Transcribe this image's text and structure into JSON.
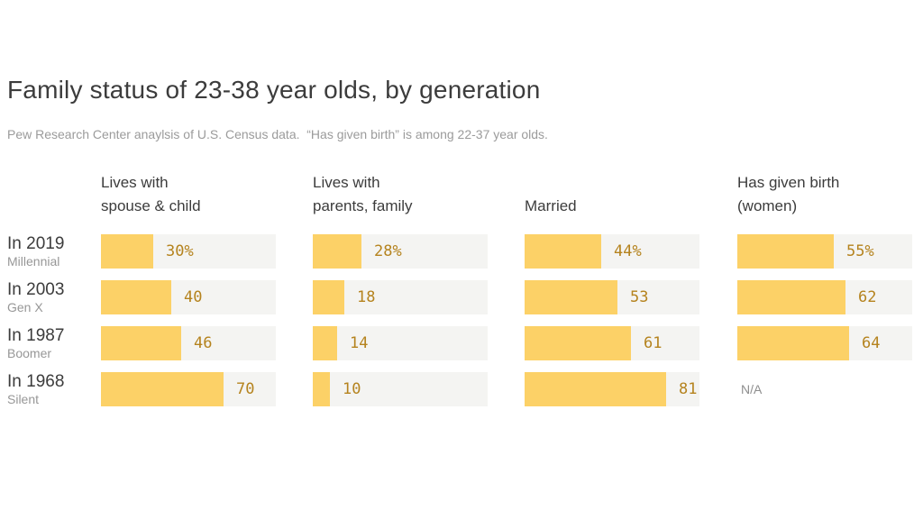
{
  "header": {
    "title": "Family status of 23-38 year olds, by generation",
    "subtitle": "Pew Research Center anaylsis of U.S. Census data.  “Has given birth” is among 22-37 year olds."
  },
  "chart_data": {
    "type": "bar",
    "orientation": "horizontal",
    "x_range": [
      0,
      100
    ],
    "unit": "percent",
    "grid": false,
    "legend": "none",
    "na_label": "N/A",
    "categories": [
      {
        "label": "In 2019",
        "sublabel": "Millennial"
      },
      {
        "label": "In 2003",
        "sublabel": "Gen X"
      },
      {
        "label": "In 1987",
        "sublabel": "Boomer"
      },
      {
        "label": "In 1968",
        "sublabel": "Silent"
      }
    ],
    "series": [
      {
        "name": "Lives with spouse & child",
        "name_lines": [
          "Lives with",
          "spouse & child"
        ],
        "values": [
          30,
          40,
          46,
          70
        ],
        "labels": [
          "30%",
          "40",
          "46",
          "70"
        ]
      },
      {
        "name": "Lives with parents, family",
        "name_lines": [
          "Lives with",
          "parents, family"
        ],
        "values": [
          28,
          18,
          14,
          10
        ],
        "labels": [
          "28%",
          "18",
          "14",
          "10"
        ]
      },
      {
        "name": "Married",
        "name_lines": [
          "Married"
        ],
        "values": [
          44,
          53,
          61,
          81
        ],
        "labels": [
          "44%",
          "53",
          "61",
          "81"
        ]
      },
      {
        "name": "Has given birth (women)",
        "name_lines": [
          "Has given birth",
          "(women)"
        ],
        "values": [
          55,
          62,
          64,
          null
        ],
        "labels": [
          "55%",
          "62",
          "64",
          null
        ]
      }
    ],
    "colors": {
      "bar_fill": "#fcd167",
      "bar_track": "#f4f4f2",
      "value_text": "#b5831e",
      "title_text": "#3c3c3c",
      "muted_text": "#9b9b9b"
    }
  }
}
